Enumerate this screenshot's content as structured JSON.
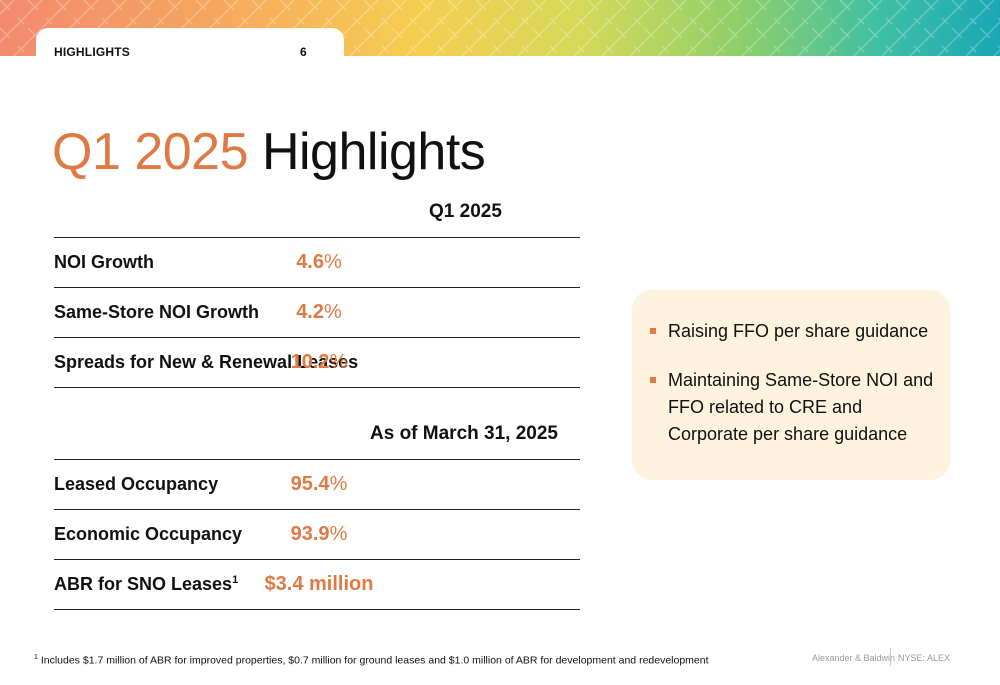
{
  "header": {
    "section_label": "HIGHLIGHTS",
    "page_number": "6",
    "banner_colors": [
      "#f28a6f",
      "#f6a85e",
      "#f6cf52",
      "#d6d95a",
      "#8fcf6a",
      "#3fbfa5",
      "#1aa7b5"
    ]
  },
  "title": {
    "accent": "Q1 2025",
    "rest": " Highlights",
    "accent_color": "#e07a45"
  },
  "table1": {
    "header": "Q1 2025",
    "rows": [
      {
        "label": "NOI Growth",
        "value": "4.6",
        "unit": "%"
      },
      {
        "label": "Same-Store NOI Growth",
        "value": "4.2",
        "unit": "%"
      },
      {
        "label": "Spreads for New & Renewal Leases",
        "value": "10.2",
        "unit": "%"
      }
    ]
  },
  "table2": {
    "header": "As of March 31, 2025",
    "rows": [
      {
        "label": "Leased Occupancy",
        "value": "95.4",
        "unit": "%"
      },
      {
        "label": "Economic Occupancy",
        "value": "93.9",
        "unit": "%"
      },
      {
        "label": "ABR for SNO Leases",
        "label_sup": "1",
        "value": "$3.4 million",
        "unit": ""
      }
    ]
  },
  "panel": {
    "background": "#fdf3df",
    "bullets": [
      "Raising FFO per share guidance",
      "Maintaining Same-Store NOI and FFO related to CRE and Corporate per share guidance"
    ]
  },
  "footer": {
    "footnote_marker": "1",
    "footnote": " Includes $1.7 million of ABR for improved properties, $0.7 million for ground leases and $1.0 million of ABR for development and redevelopment",
    "brand": "Alexander & Baldwin",
    "ticker": "NYSE: ALEX"
  }
}
